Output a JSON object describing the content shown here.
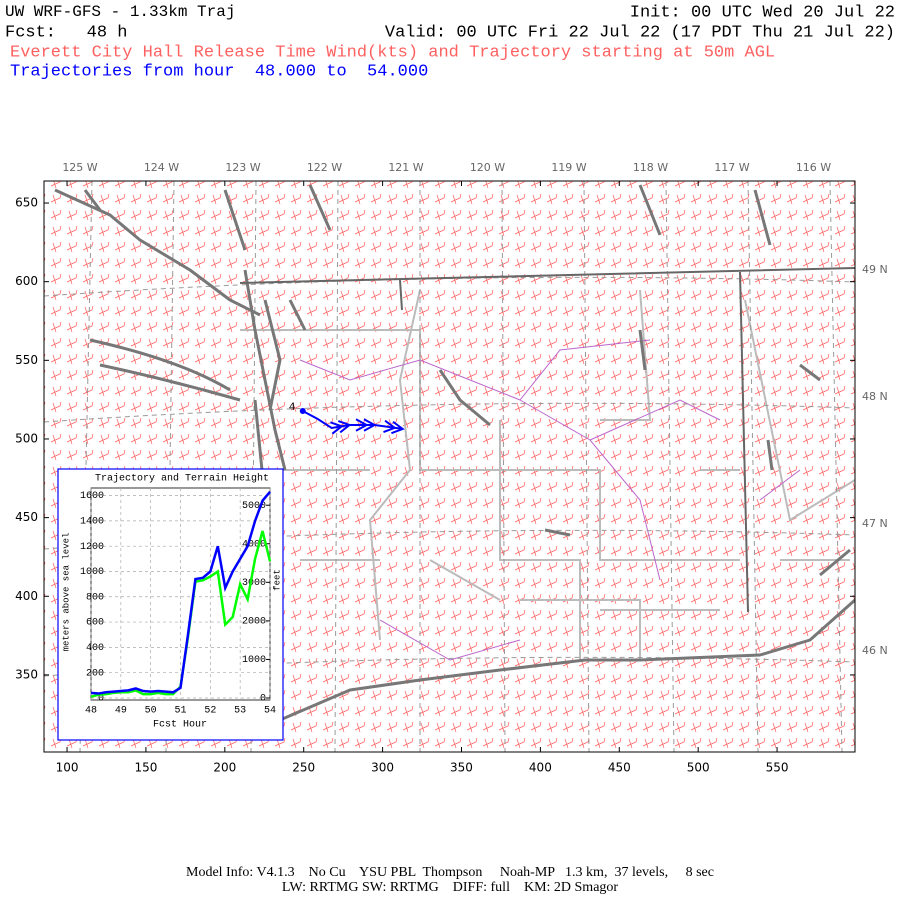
{
  "header": {
    "title": "UW WRF-GFS - 1.33km Traj",
    "init": "Init: 00 UTC Wed 20 Jul 22",
    "fcst": "Fcst:   48 h",
    "valid": "Valid: 00 UTC Fri 22 Jul 22 (17 PDT Thu 21 Jul 22)",
    "release": "Everett City Hall Release Time Wind(kts) and Trajectory starting at 50m AGL",
    "trajectory_range": "Trajectories from hour  48.000 to  54.000"
  },
  "map": {
    "xlim": [
      85.4,
      599.4
    ],
    "ylim": [
      301,
      664
    ],
    "xticks": [
      100,
      150,
      200,
      250,
      300,
      350,
      400,
      450,
      500,
      550
    ],
    "yticks": [
      350,
      400,
      450,
      500,
      550,
      600,
      650
    ],
    "lon_labels": [
      "125 W",
      "124 W",
      "123 W",
      "122 W",
      "121 W",
      "120 W",
      "119 W",
      "118 W",
      "117 W",
      "116 W"
    ],
    "lat_labels": [
      "49 N",
      "48 N",
      "47 N",
      "46 N"
    ],
    "trajectory": {
      "label": "4",
      "color": "#0000ff",
      "x": [
        249.4,
        258.9,
        267.7,
        279.1,
        294.9,
        312.7
      ],
      "y": [
        517.8,
        512.7,
        507.0,
        508.9,
        508.9,
        506.4
      ]
    }
  },
  "chart_data": {
    "type": "line",
    "title": "Trajectory and Terrain Height",
    "x_label": "Fcst Hour",
    "y_label": "meters above sea level",
    "y2_label": "feet",
    "x": [
      48,
      48.25,
      48.5,
      48.75,
      49,
      49.25,
      49.5,
      49.75,
      50,
      50.25,
      50.5,
      50.75,
      51,
      51.25,
      51.5,
      51.75,
      52,
      52.25,
      52.5,
      52.75,
      53,
      53.25,
      53.5,
      53.75,
      54
    ],
    "xlim": [
      48,
      54
    ],
    "xticks": [
      48,
      49,
      50,
      51,
      52,
      53,
      54
    ],
    "ylim": [
      -16,
      1660
    ],
    "yticks": [
      0,
      200,
      400,
      600,
      800,
      1000,
      1200,
      1400,
      1600
    ],
    "y2lim": [
      -52,
      5446
    ],
    "y2ticks": [
      0,
      1000,
      2000,
      3000,
      4000,
      5000
    ],
    "grid": true,
    "series": [
      {
        "color": "#0000ff",
        "values": [
          40,
          35,
          45,
          50,
          55,
          60,
          75,
          55,
          50,
          55,
          50,
          45,
          80,
          500,
          940,
          950,
          1000,
          1200,
          870,
          1000,
          1100,
          1200,
          1400,
          1560,
          1630
        ]
      },
      {
        "color": "#00ff00",
        "values": [
          10,
          25,
          30,
          40,
          45,
          45,
          60,
          30,
          30,
          40,
          30,
          30,
          90,
          480,
          920,
          930,
          960,
          1000,
          580,
          640,
          900,
          780,
          1100,
          1320,
          1080
        ]
      }
    ]
  },
  "footer": {
    "line1": "Model Info: V4.1.3    No Cu    YSU PBL  Thompson     Noah-MP   1.3 km,  37 levels,     8 sec",
    "line2": "LW: RRTMG SW: RRTMG    DIFF: full    KM: 2D Smagor"
  }
}
